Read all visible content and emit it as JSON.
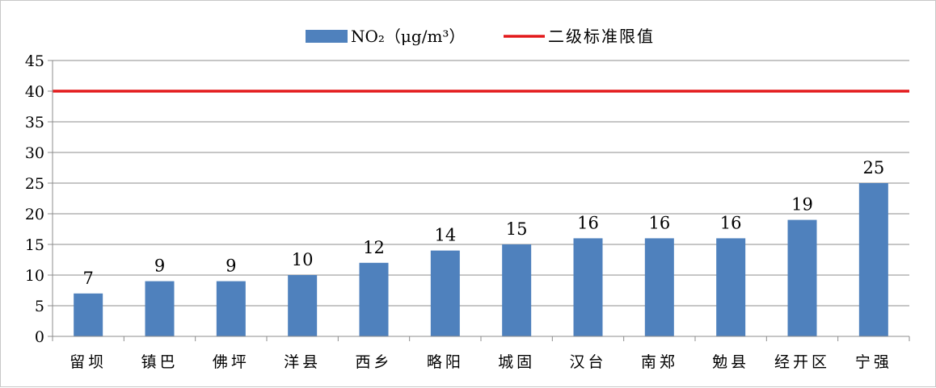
{
  "chart_data": {
    "type": "bar",
    "categories": [
      "留坝",
      "镇巴",
      "佛坪",
      "洋县",
      "西乡",
      "略阳",
      "城固",
      "汉台",
      "南郑",
      "勉县",
      "经开区",
      "宁强"
    ],
    "series": [
      {
        "name": "NO₂（μg/m³）",
        "values": [
          7,
          9,
          9,
          10,
          12,
          14,
          15,
          16,
          16,
          16,
          19,
          25
        ],
        "color": "#4f81bd"
      }
    ],
    "reference_line": {
      "name": "二级标准限值",
      "value": 40,
      "color": "#e31a1c"
    },
    "ylim": [
      0,
      45
    ],
    "yticks": [
      0,
      5,
      10,
      15,
      20,
      25,
      30,
      35,
      40,
      45
    ],
    "title": "",
    "xlabel": "",
    "ylabel": "",
    "grid": true,
    "legend_position": "top-center",
    "data_labels": true
  }
}
